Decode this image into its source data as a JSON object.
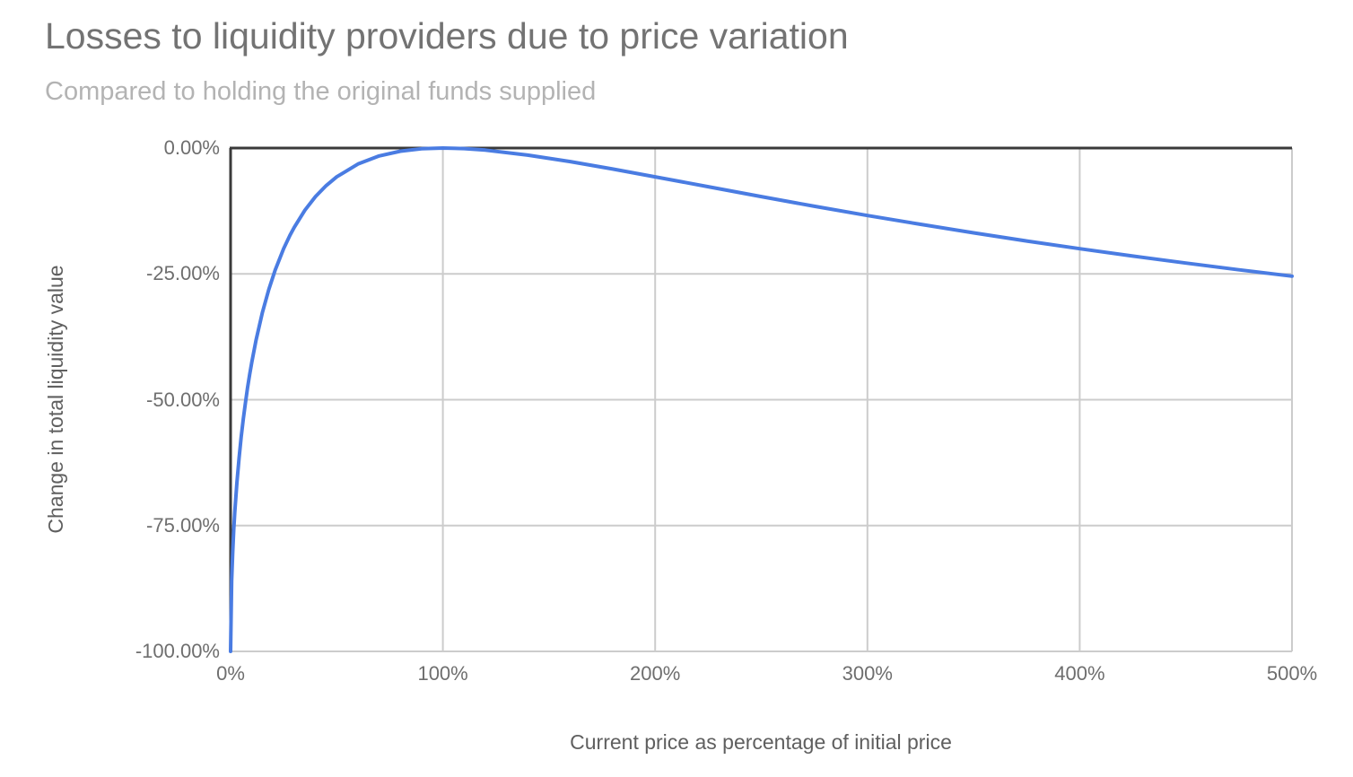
{
  "chart_data": {
    "type": "line",
    "title": "Losses to liquidity providers due to price variation",
    "subtitle": "Compared to holding the original funds supplied",
    "xlabel": "Current price as percentage of initial price",
    "ylabel": "Change in total liquidity value",
    "xlim": [
      0,
      500
    ],
    "ylim": [
      -100,
      0
    ],
    "grid": true,
    "legend": "none",
    "x_ticks": [
      "0%",
      "100%",
      "200%",
      "300%",
      "400%",
      "500%"
    ],
    "x_tick_values": [
      0,
      100,
      200,
      300,
      400,
      500
    ],
    "y_ticks": [
      "0.00%",
      "-25.00%",
      "-50.00%",
      "-75.00%",
      "-100.00%"
    ],
    "y_tick_values": [
      0,
      -25,
      -50,
      -75,
      -100
    ],
    "colors": {
      "series_line": "#4a7ce2",
      "baseline_axis": "#3a3a3a",
      "gridline": "#cccccc",
      "title_text": "#737373",
      "subtitle_text": "#b3b3b3",
      "tick_text": "#6e6e6e",
      "axis_title_text": "#5f5f5f",
      "background": "#ffffff"
    },
    "series": [
      {
        "name": "Change in total liquidity value",
        "color": "#4a7ce2",
        "points": [
          [
            0,
            -100
          ],
          [
            0.5,
            -85.93
          ],
          [
            1,
            -80.2
          ],
          [
            1.5,
            -75.87
          ],
          [
            2,
            -72.27
          ],
          [
            3,
            -66.37
          ],
          [
            4,
            -61.54
          ],
          [
            5,
            -57.41
          ],
          [
            6,
            -53.78
          ],
          [
            7,
            -50.55
          ],
          [
            8,
            -47.62
          ],
          [
            9,
            -44.95
          ],
          [
            10,
            -42.5
          ],
          [
            12,
            -38.14
          ],
          [
            15,
            -32.64
          ],
          [
            18,
            -28.09
          ],
          [
            21,
            -24.25
          ],
          [
            25,
            -20.0
          ],
          [
            28,
            -17.32
          ],
          [
            30,
            -15.74
          ],
          [
            35,
            -12.35
          ],
          [
            40,
            -9.65
          ],
          [
            45,
            -7.47
          ],
          [
            50,
            -5.72
          ],
          [
            60,
            -3.18
          ],
          [
            70,
            -1.57
          ],
          [
            80,
            -0.62
          ],
          [
            90,
            -0.14
          ],
          [
            100,
            0.0
          ],
          [
            110,
            -0.11
          ],
          [
            120,
            -0.41
          ],
          [
            140,
            -1.4
          ],
          [
            160,
            -2.7
          ],
          [
            180,
            -4.17
          ],
          [
            200,
            -5.72
          ],
          [
            225,
            -7.69
          ],
          [
            250,
            -9.65
          ],
          [
            275,
            -11.56
          ],
          [
            300,
            -13.4
          ],
          [
            325,
            -15.16
          ],
          [
            350,
            -16.85
          ],
          [
            375,
            -18.46
          ],
          [
            400,
            -20.0
          ],
          [
            425,
            -21.47
          ],
          [
            450,
            -22.86
          ],
          [
            475,
            -24.19
          ],
          [
            500,
            -25.46
          ]
        ]
      }
    ]
  }
}
